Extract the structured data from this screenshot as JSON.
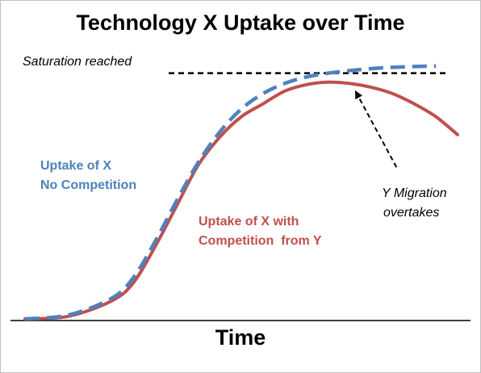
{
  "chart_data": {
    "type": "line",
    "title": "Technology X Uptake over Time",
    "xlabel": "Time",
    "ylabel": "",
    "x_ticks": "none",
    "y_ticks": "none",
    "grid": false,
    "legend": "none",
    "xlim": [
      0,
      100
    ],
    "ylim": [
      0,
      100
    ],
    "saturation_level": 96,
    "series": [
      {
        "name": "Uptake of X No Competition",
        "style": "dashed",
        "color": "#4f81bd",
        "x": [
          0,
          10,
          20,
          25,
          30,
          35,
          40,
          45,
          50,
          55,
          60,
          65,
          70,
          75,
          80,
          85,
          90,
          95,
          100
        ],
        "y": [
          0,
          1.5,
          8,
          16,
          30,
          46,
          61,
          73,
          82,
          88,
          92,
          94.5,
          96,
          97,
          97.8,
          98.3,
          98.6,
          98.8,
          99
        ]
      },
      {
        "name": "Uptake of X with Competition from Y",
        "style": "solid",
        "color": "#c0504d",
        "x": [
          0,
          10,
          20,
          25,
          30,
          35,
          40,
          45,
          50,
          55,
          60,
          65,
          70,
          75,
          80,
          85,
          90,
          95,
          100
        ],
        "y": [
          0,
          1,
          7,
          14,
          28,
          44,
          60,
          71,
          79,
          84,
          89,
          91.5,
          92.5,
          92,
          90.5,
          88,
          84,
          79,
          72
        ]
      }
    ],
    "annotations": [
      {
        "text": "Saturation reached",
        "color": "#000000"
      },
      {
        "text": "Uptake of X",
        "color": "#4f81bd"
      },
      {
        "text": "No Competition",
        "color": "#4f81bd"
      },
      {
        "text": "Uptake of X with",
        "color": "#c0504d"
      },
      {
        "text": "Competition  from Y",
        "color": "#c0504d"
      },
      {
        "text": "Y Migration",
        "color": "#000000"
      },
      {
        "text": "overtakes",
        "color": "#000000"
      }
    ],
    "arrow": {
      "from_x": 84,
      "from_y": 58,
      "to_x": 72,
      "to_y": 92.5,
      "style": "dashed"
    },
    "colors": {
      "axis": "#000000",
      "blue": "#4f81bd",
      "red": "#c0504d"
    }
  }
}
